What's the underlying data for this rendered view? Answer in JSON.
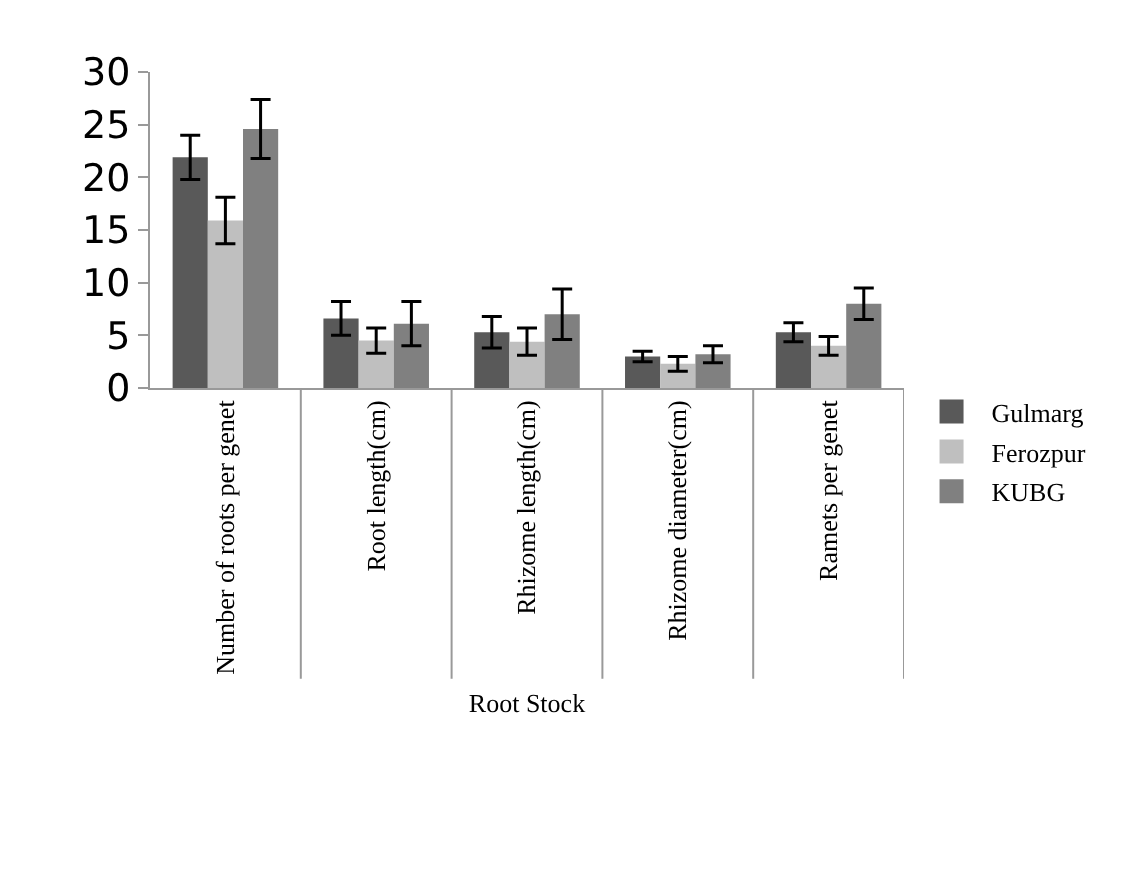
{
  "chart_data": {
    "type": "bar",
    "xlabel": "Root Stock",
    "categories": [
      "Number of roots per genet",
      "Root length(cm)",
      "Rhizome length(cm)",
      "Rhizome diameter(cm)",
      "Ramets per genet"
    ],
    "series": [
      {
        "name": "Gulmarg",
        "color": "#595959",
        "values": [
          21.9,
          6.6,
          5.3,
          3.0,
          5.3
        ],
        "errors": [
          2.1,
          1.6,
          1.5,
          0.5,
          0.9
        ]
      },
      {
        "name": "Ferozpur",
        "color": "#bfbfbf",
        "values": [
          15.9,
          4.5,
          4.4,
          2.3,
          4.0
        ],
        "errors": [
          2.2,
          1.2,
          1.3,
          0.7,
          0.9
        ]
      },
      {
        "name": "KUBG",
        "color": "#808080",
        "values": [
          24.6,
          6.1,
          7.0,
          3.2,
          8.0
        ],
        "errors": [
          2.8,
          2.1,
          2.4,
          0.8,
          1.5
        ]
      }
    ],
    "ylim": [
      0,
      30
    ],
    "yticks": [
      0,
      5,
      10,
      15,
      20,
      25,
      30
    ],
    "grid": false,
    "legend": "right"
  }
}
